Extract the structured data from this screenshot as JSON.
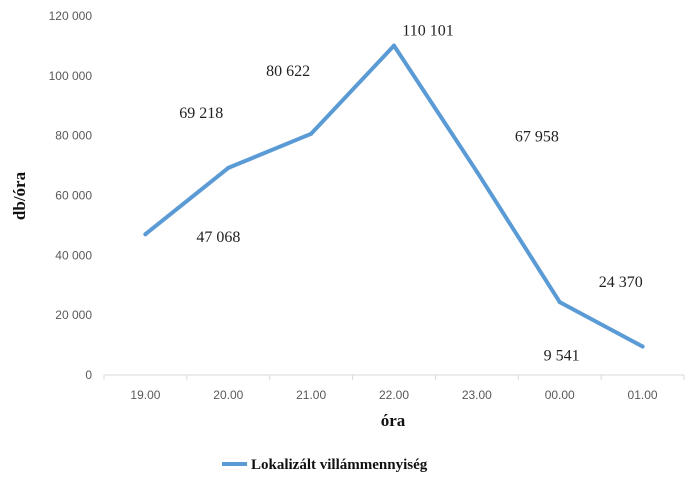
{
  "chart_data": {
    "type": "line",
    "categories": [
      "19.00",
      "20.00",
      "21.00",
      "22.00",
      "23.00",
      "00.00",
      "01.00"
    ],
    "series": [
      {
        "name": "Lokalizált villámmennyiség",
        "values": [
          47068,
          69218,
          80622,
          110101,
          67958,
          24370,
          9541
        ],
        "color": "#5b9bd5"
      }
    ],
    "data_labels": [
      "47 068",
      "69 218",
      "80 622",
      "110 101",
      "67 958",
      "24 370",
      "9 541"
    ],
    "xlabel": "óra",
    "ylabel": "db/óra",
    "ylim": [
      0,
      120000
    ],
    "yticks": [
      0,
      20000,
      40000,
      60000,
      80000,
      100000,
      120000
    ],
    "ytick_labels": [
      "0",
      "20 000",
      "40 000",
      "60 000",
      "80 000",
      "100 000",
      "120 000"
    ],
    "grid": false,
    "legend_position": "bottom"
  }
}
